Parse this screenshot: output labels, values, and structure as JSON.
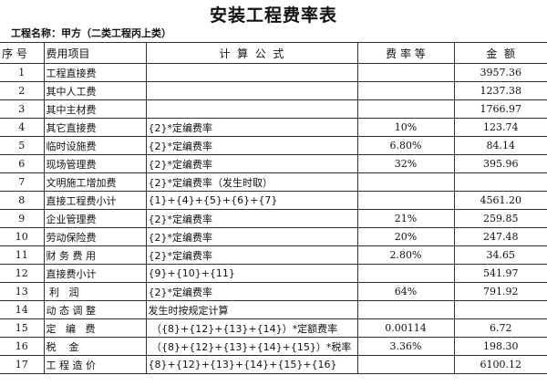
{
  "title": "安装工程费率表",
  "project_name": "工程名称：甲方（二类工程丙上类）",
  "headers": [
    "序 号",
    "费用项目",
    "计  算  公  式",
    "费 率 等",
    "金  额"
  ],
  "rows": [
    {
      "no": "1",
      "item": "工程直接费",
      "formula": "",
      "rate": "",
      "amount": "3957.36"
    },
    {
      "no": "2",
      "item": "其中人工费",
      "formula": "",
      "rate": "",
      "amount": "1237.38"
    },
    {
      "no": "3",
      "item": "其中主材费",
      "formula": "",
      "rate": "",
      "amount": "1766.97"
    },
    {
      "no": "4",
      "item": "其它直接费",
      "formula": "{2}*定编费率",
      "rate": "10%",
      "amount": "123.74"
    },
    {
      "no": "5",
      "item": "临时设施费",
      "formula": "{2}*定编费率",
      "rate": "6.80%",
      "amount": "84.14"
    },
    {
      "no": "6",
      "item": "现场管理费",
      "formula": "{2}*定编费率",
      "rate": "32%",
      "amount": "395.96"
    },
    {
      "no": "7",
      "item": "文明施工增加费",
      "formula": "{2}*定编费率（发生时取）",
      "rate": "",
      "amount": ""
    },
    {
      "no": "8",
      "item": "直接工程费小计",
      "formula": "{1}+{4}+{5}+{6}+{7}",
      "rate": "",
      "amount": "4561.20"
    },
    {
      "no": "9",
      "item": "企业管理费",
      "formula": "{2}*定编费率",
      "rate": "21%",
      "amount": "259.85"
    },
    {
      "no": "10",
      "item": "劳动保险费",
      "formula": "{2}*定编费率",
      "rate": "20%",
      "amount": "247.48"
    },
    {
      "no": "11",
      "item": "财 务 费 用",
      "formula": "{2}*定编费率",
      "rate": "2.80%",
      "amount": "34.65"
    },
    {
      "no": "12",
      "item": "直接费小计",
      "formula": "{9}+{10}+{11}",
      "rate": "",
      "amount": "541.97"
    },
    {
      "no": "13",
      "item": " 利   润",
      "formula": "{2}*定编费率",
      "rate": "64%",
      "amount": "791.92"
    },
    {
      "no": "14",
      "item": "动 态 调 整",
      "formula": "发生时按规定计算",
      "rate": "",
      "amount": ""
    },
    {
      "no": "15",
      "item": "定   编   费",
      "formula": " （{8}+{12}+{13}+{14}）*定额费率",
      "rate": "0.00114",
      "amount": "6.72"
    },
    {
      "no": "16",
      "item": "税    金",
      "formula": " （{8}+{12}+{13}+{14}+{15}）*税率",
      "rate": "3.36%",
      "amount": "198.30"
    },
    {
      "no": "17",
      "item": "工 程 造 价",
      "formula": "{8}+{12}+{13}+{14}+{15}+{16}",
      "rate": "",
      "amount": "6100.12"
    }
  ]
}
